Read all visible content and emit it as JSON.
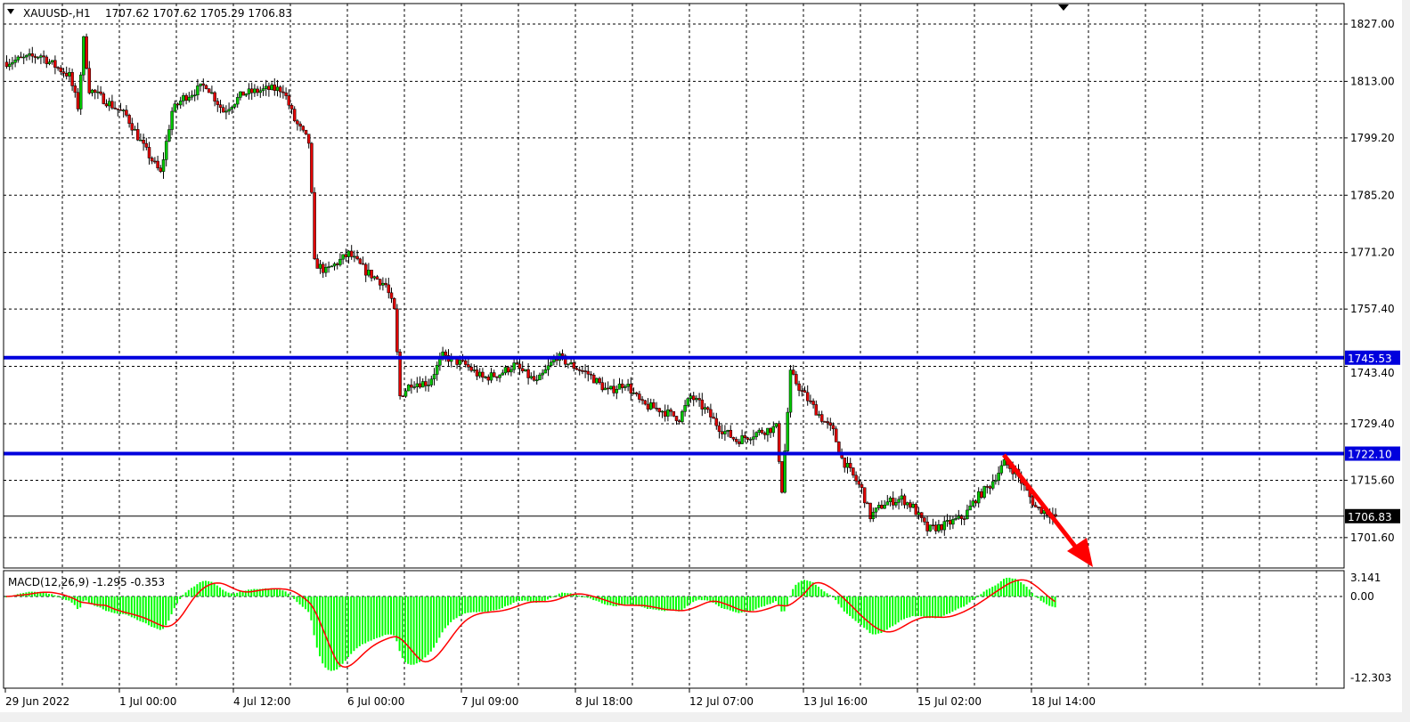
{
  "header": {
    "symbol_label": "XAUUSD-,H1",
    "ohlc": "1707.62 1707.62 1705.29 1706.83"
  },
  "colors": {
    "bull": "#00c800",
    "bear": "#e00000",
    "level_line": "#0000dd",
    "arrow": "#ff0000",
    "macd_hist": "#00ff00",
    "macd_signal": "#ff0000"
  },
  "price_axis": {
    "labels": [
      "1827.00",
      "1813.00",
      "1799.20",
      "1785.20",
      "1771.20",
      "1757.40",
      "1743.40",
      "1729.40",
      "1715.60",
      "1701.60"
    ]
  },
  "levels": [
    {
      "price": 1745.53,
      "label": "1745.53"
    },
    {
      "price": 1722.1,
      "label": "1722.10"
    }
  ],
  "current_price": {
    "price": 1706.83,
    "label": "1706.83"
  },
  "time_axis": {
    "labels": [
      "29 Jun 2022",
      "1 Jul 00:00",
      "4 Jul 12:00",
      "6 Jul 00:00",
      "7 Jul 09:00",
      "8 Jul 18:00",
      "12 Jul 07:00",
      "13 Jul 16:00",
      "15 Jul 02:00",
      "18 Jul 14:00"
    ]
  },
  "macd": {
    "legend": "MACD(12,26,9) -1.295 -0.353",
    "axis_labels": [
      "3.141",
      "0.00",
      "-12.303"
    ],
    "axis_values": [
      3.141,
      0,
      -12.303
    ]
  },
  "chart_data": {
    "type": "candlestick",
    "symbol": "XAUUSD-",
    "timeframe": "H1",
    "ylim": [
      1696,
      1831
    ],
    "approx_close_path": [
      [
        0,
        1817.7
      ],
      [
        12,
        1819.4
      ],
      [
        15,
        1817.7
      ],
      [
        22,
        1814.4
      ],
      [
        25,
        1806.8
      ],
      [
        27,
        1823.1
      ],
      [
        29,
        1811.1
      ],
      [
        42,
        1804.6
      ],
      [
        48,
        1797.0
      ],
      [
        54,
        1790.5
      ],
      [
        58,
        1805.7
      ],
      [
        62,
        1809.0
      ],
      [
        70,
        1812.2
      ],
      [
        76,
        1805.7
      ],
      [
        83,
        1810.0
      ],
      [
        92,
        1811.1
      ],
      [
        97,
        1811.1
      ],
      [
        101,
        1803.5
      ],
      [
        106,
        1798.1
      ],
      [
        107,
        1785.0
      ],
      [
        108,
        1768.7
      ],
      [
        112,
        1766.6
      ],
      [
        120,
        1770.9
      ],
      [
        126,
        1766.6
      ],
      [
        133,
        1763.3
      ],
      [
        136,
        1756.8
      ],
      [
        138,
        1736.1
      ],
      [
        142,
        1739.4
      ],
      [
        148,
        1739.4
      ],
      [
        153,
        1745.9
      ],
      [
        161,
        1743.7
      ],
      [
        167,
        1740.5
      ],
      [
        173,
        1741.6
      ],
      [
        178,
        1743.7
      ],
      [
        186,
        1739.4
      ],
      [
        193,
        1745.9
      ],
      [
        198,
        1743.7
      ],
      [
        204,
        1741.6
      ],
      [
        211,
        1737.2
      ],
      [
        217,
        1739.4
      ],
      [
        223,
        1734.0
      ],
      [
        229,
        1732.9
      ],
      [
        236,
        1730.7
      ],
      [
        240,
        1736.1
      ],
      [
        245,
        1732.9
      ],
      [
        250,
        1728.5
      ],
      [
        256,
        1725.3
      ],
      [
        264,
        1727.4
      ],
      [
        270,
        1728.5
      ],
      [
        272,
        1713.3
      ],
      [
        275,
        1741.6
      ],
      [
        279,
        1737.2
      ],
      [
        286,
        1730.7
      ],
      [
        290,
        1727.4
      ],
      [
        293,
        1720.9
      ],
      [
        300,
        1713.3
      ],
      [
        303,
        1706.8
      ],
      [
        308,
        1710.0
      ],
      [
        314,
        1711.1
      ],
      [
        318,
        1709.0
      ],
      [
        323,
        1703.5
      ],
      [
        329,
        1704.6
      ],
      [
        336,
        1706.8
      ],
      [
        340,
        1711.1
      ],
      [
        345,
        1714.4
      ],
      [
        350,
        1719.8
      ],
      [
        354,
        1717.7
      ],
      [
        361,
        1709.0
      ],
      [
        368,
        1706.83
      ]
    ]
  }
}
